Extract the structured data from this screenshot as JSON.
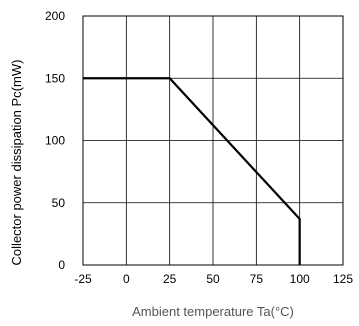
{
  "chart_data": {
    "type": "line",
    "xlabel": "Ambient temperature Ta(°C)",
    "ylabel": "Collector power dissipation Pc(mW)",
    "xlim": [
      -25,
      125
    ],
    "ylim": [
      0,
      200
    ],
    "x_ticks": [
      -25,
      0,
      25,
      50,
      75,
      100,
      125
    ],
    "y_ticks": [
      0,
      50,
      100,
      150,
      200
    ],
    "grid": true,
    "series": [
      {
        "x": [
          -25,
          25,
          100,
          100
        ],
        "y": [
          150,
          150,
          37,
          0
        ]
      }
    ]
  }
}
